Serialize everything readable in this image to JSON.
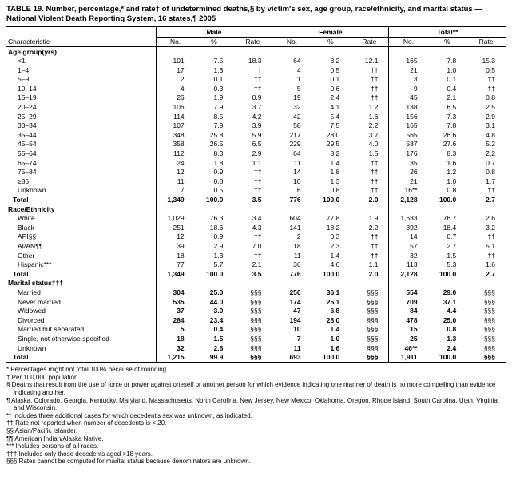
{
  "title": "TABLE 19. Number, percentage,* and rate† of undetermined deaths,§ by victim's sex, age group, race/ethnicity, and marital status — National Violent Death Reporting System, 16 states,¶ 2005",
  "header": {
    "characteristic": "Characteristic",
    "groups": [
      "Male",
      "Female",
      "Total**"
    ],
    "subcolumns": [
      "No.",
      "%",
      "Rate"
    ]
  },
  "sections": [
    {
      "name": "Age group(yrs)",
      "rows": [
        {
          "label": "<1",
          "type": "item",
          "cells": [
            "101",
            "7.5",
            "18.3",
            "64",
            "8.2",
            "12.1",
            "165",
            "7.8",
            "15.3"
          ]
        },
        {
          "label": "1–4",
          "type": "item",
          "cells": [
            "17",
            "1.3",
            "††",
            "4",
            "0.5",
            "††",
            "21",
            "1.0",
            "0.5"
          ]
        },
        {
          "label": "5–9",
          "type": "item",
          "cells": [
            "2",
            "0.1",
            "††",
            "1",
            "0.1",
            "††",
            "3",
            "0.1",
            "††"
          ]
        },
        {
          "label": "10–14",
          "type": "item",
          "cells": [
            "4",
            "0.3",
            "††",
            "5",
            "0.6",
            "††",
            "9",
            "0.4",
            "††"
          ]
        },
        {
          "label": "15–19",
          "type": "item",
          "cells": [
            "26",
            "1.9",
            "0.9",
            "19",
            "2.4",
            "††",
            "45",
            "2.1",
            "0.8"
          ]
        },
        {
          "label": "20–24",
          "type": "item",
          "cells": [
            "106",
            "7.9",
            "3.7",
            "32",
            "4.1",
            "1.2",
            "138",
            "6.5",
            "2.5"
          ]
        },
        {
          "label": "25–29",
          "type": "item",
          "cells": [
            "114",
            "8.5",
            "4.2",
            "42",
            "5.4",
            "1.6",
            "156",
            "7.3",
            "2.9"
          ]
        },
        {
          "label": "30–34",
          "type": "item",
          "cells": [
            "107",
            "7.9",
            "3.9",
            "58",
            "7.5",
            "2.2",
            "165",
            "7.8",
            "3.1"
          ]
        },
        {
          "label": "35–44",
          "type": "item",
          "cells": [
            "348",
            "25.8",
            "5.9",
            "217",
            "28.0",
            "3.7",
            "565",
            "26.6",
            "4.8"
          ]
        },
        {
          "label": "45–54",
          "type": "item",
          "cells": [
            "358",
            "26.5",
            "6.5",
            "229",
            "29.5",
            "4.0",
            "587",
            "27.6",
            "5.2"
          ]
        },
        {
          "label": "55–64",
          "type": "item",
          "cells": [
            "112",
            "8.3",
            "2.9",
            "64",
            "8.2",
            "1.5",
            "176",
            "8.3",
            "2.2"
          ]
        },
        {
          "label": "65–74",
          "type": "item",
          "cells": [
            "24",
            "1.8",
            "1.1",
            "11",
            "1.4",
            "††",
            "35",
            "1.6",
            "0.7"
          ]
        },
        {
          "label": "75–84",
          "type": "item",
          "cells": [
            "12",
            "0.9",
            "††",
            "14",
            "1.8",
            "††",
            "26",
            "1.2",
            "0.8"
          ]
        },
        {
          "label": "≥85",
          "type": "item",
          "cells": [
            "11",
            "0.8",
            "††",
            "10",
            "1.3",
            "††",
            "21",
            "1.0",
            "1.7"
          ]
        },
        {
          "label": "Unknown",
          "type": "item",
          "cells": [
            "7",
            "0.5",
            "††",
            "6",
            "0.8",
            "††",
            "16**",
            "0.8",
            "††"
          ]
        },
        {
          "label": "Total",
          "type": "total",
          "cells": [
            "1,349",
            "100.0",
            "3.5",
            "776",
            "100.0",
            "2.0",
            "2,128",
            "100.0",
            "2.7"
          ]
        }
      ]
    },
    {
      "name": "Race/Ethnicity",
      "rows": [
        {
          "label": "White",
          "type": "item",
          "cells": [
            "1,029",
            "76.3",
            "3.4",
            "604",
            "77.8",
            "1.9",
            "1,633",
            "76.7",
            "2.6"
          ]
        },
        {
          "label": "Black",
          "type": "item",
          "cells": [
            "251",
            "18.6",
            "4.3",
            "141",
            "18.2",
            "2.2",
            "392",
            "18.4",
            "3.2"
          ]
        },
        {
          "label": "API§§",
          "type": "item",
          "cells": [
            "12",
            "0.9",
            "††",
            "2",
            "0.3",
            "††",
            "14",
            "0.7",
            "††"
          ]
        },
        {
          "label": "AI/AN¶¶",
          "type": "item",
          "cells": [
            "39",
            "2.9",
            "7.0",
            "18",
            "2.3",
            "††",
            "57",
            "2.7",
            "5.1"
          ]
        },
        {
          "label": "Other",
          "type": "item",
          "cells": [
            "18",
            "1.3",
            "††",
            "11",
            "1.4",
            "††",
            "32",
            "1.5",
            "††"
          ]
        },
        {
          "label": "Hispanic***",
          "type": "item",
          "cells": [
            "77",
            "5.7",
            "2.1",
            "36",
            "4.6",
            "1.1",
            "113",
            "5.3",
            "1.6"
          ]
        },
        {
          "label": "Total",
          "type": "total",
          "cells": [
            "1,349",
            "100.0",
            "3.5",
            "776",
            "100.0",
            "2.0",
            "2,128",
            "100.0",
            "2.7"
          ]
        }
      ]
    },
    {
      "name": "Marital status†††",
      "bold_nums": true,
      "rows": [
        {
          "label": "Married",
          "type": "item",
          "cells": [
            "304",
            "25.0",
            "§§§",
            "250",
            "36.1",
            "§§§",
            "554",
            "29.0",
            "§§§"
          ]
        },
        {
          "label": "Never married",
          "type": "item",
          "cells": [
            "535",
            "44.0",
            "§§§",
            "174",
            "25.1",
            "§§§",
            "709",
            "37.1",
            "§§§"
          ]
        },
        {
          "label": "Widowed",
          "type": "item",
          "cells": [
            "37",
            "3.0",
            "§§§",
            "47",
            "6.8",
            "§§§",
            "84",
            "4.4",
            "§§§"
          ]
        },
        {
          "label": "Divorced",
          "type": "item",
          "cells": [
            "284",
            "23.4",
            "§§§",
            "194",
            "28.0",
            "§§§",
            "478",
            "25.0",
            "§§§"
          ]
        },
        {
          "label": "Married but separated",
          "type": "item",
          "cells": [
            "5",
            "0.4",
            "§§§",
            "10",
            "1.4",
            "§§§",
            "15",
            "0.8",
            "§§§"
          ]
        },
        {
          "label": "Single, not otherwise specified",
          "type": "item",
          "cells": [
            "18",
            "1.5",
            "§§§",
            "7",
            "1.0",
            "§§§",
            "25",
            "1.3",
            "§§§"
          ]
        },
        {
          "label": "Unknown",
          "type": "item",
          "cells": [
            "32",
            "2.6",
            "§§§",
            "11",
            "1.6",
            "§§§",
            "46**",
            "2.4",
            "§§§"
          ]
        },
        {
          "label": "Total",
          "type": "total",
          "cells": [
            "1,215",
            "99.9",
            "§§§",
            "693",
            "100.0",
            "§§§",
            "1,911",
            "100.0",
            "§§§"
          ]
        }
      ]
    }
  ],
  "footnotes": [
    "* Percentages might not total 100% because of rounding.",
    "† Per 100,000 population.",
    "§ Deaths that result from the use of force or power against oneself or another person for which evidence indicating one manner of death is no more compelling than evidence indicating another.",
    "¶ Alaska, Colorado, Georgia, Kentucky, Maryland, Massachusetts, North Carolina, New Jersey, New Mexico, Oklahoma, Oregon, Rhode Island, South Carolina, Utah, Virginia, and Wisconsin.",
    "** Includes three additional cases for which decedent's sex was unknown, as indicated.",
    "†† Rate not reported when number of decedents is < 20.",
    "§§ Asian/Pacific Islander.",
    "¶¶ American Indian/Alaska Native.",
    "*** Includes persons of all races.",
    "††† Includes only those decedents aged >18 years.",
    "§§§ Rates cannot be computed for marital status because denominators are unknown."
  ]
}
